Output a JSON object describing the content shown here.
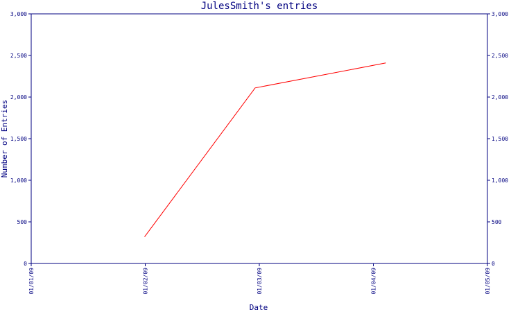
{
  "chart_data": {
    "type": "line",
    "title": "JulesSmith's entries",
    "xlabel": "Date",
    "ylabel": "Number of Entries",
    "ylim": [
      0,
      3000
    ],
    "y_ticks": [
      0,
      500,
      1000,
      1500,
      2000,
      2500,
      3000
    ],
    "y_tick_labels": [
      "0",
      "500",
      "1,000",
      "1,500",
      "2,000",
      "2,500",
      "3,000"
    ],
    "x_ticks": [
      "01/01/09",
      "01/02/09",
      "01/03/09",
      "01/04/09",
      "01/05/09"
    ],
    "series": [
      {
        "color": "#ff0000",
        "points": [
          {
            "x": "01/02/09",
            "y": 320
          },
          {
            "x": "01/03/09",
            "y": 2110
          },
          {
            "x": "01/04/09",
            "y": 2410
          }
        ]
      }
    ],
    "grid": false,
    "axis_color": "#000080"
  }
}
